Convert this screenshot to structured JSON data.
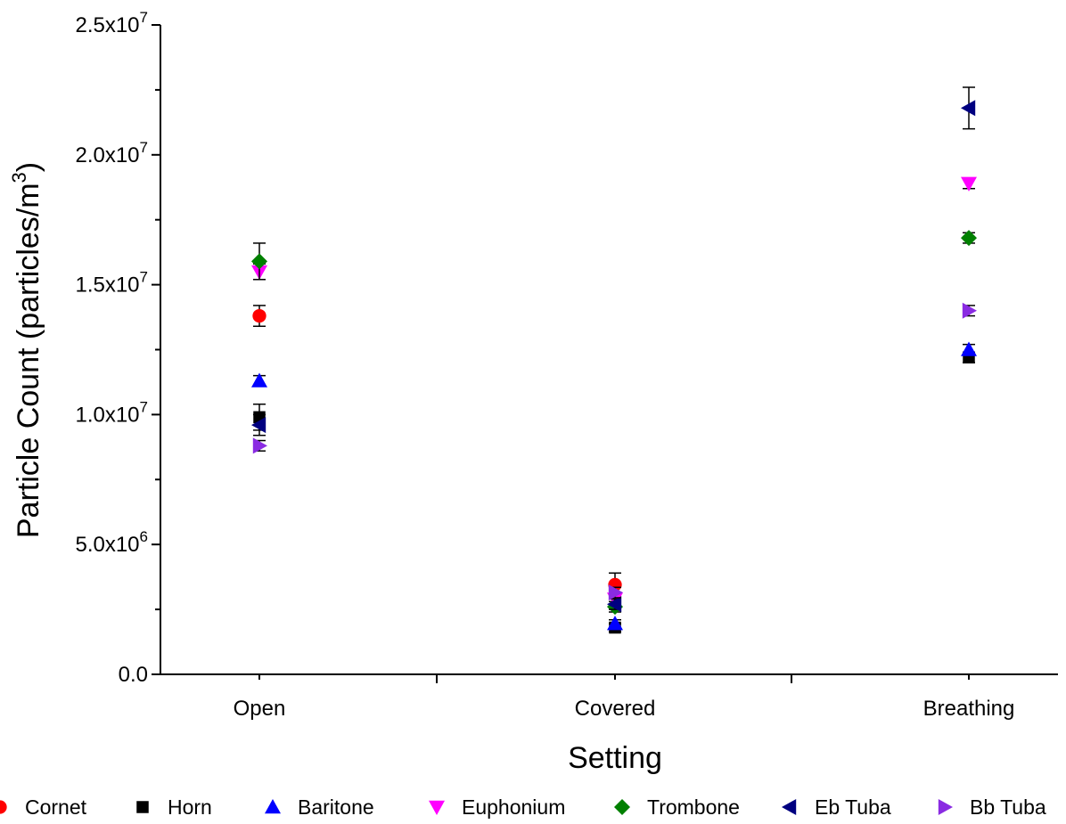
{
  "chart_data": {
    "type": "scatter",
    "title": "",
    "xlabel": "Setting",
    "ylabel": "Particle Count (particles/m³)",
    "ylabel_base": "Particle Count (particles/m",
    "ylabel_sup": "3",
    "ylabel_close": ")",
    "categories": [
      "Open",
      "Covered",
      "Breathing"
    ],
    "ylim": [
      0,
      25000000
    ],
    "y_ticks": [
      {
        "value": 0,
        "base": "0.0",
        "exp": ""
      },
      {
        "value": 5000000,
        "base": "5.0x10",
        "exp": "6"
      },
      {
        "value": 10000000,
        "base": "1.0x10",
        "exp": "7"
      },
      {
        "value": 15000000,
        "base": "1.5x10",
        "exp": "7"
      },
      {
        "value": 20000000,
        "base": "2.0x10",
        "exp": "7"
      },
      {
        "value": 25000000,
        "base": "2.5x10",
        "exp": "7"
      }
    ],
    "legend_position": "bottom",
    "grid": false,
    "series": [
      {
        "name": "Cornet",
        "marker": "circle",
        "color": "#ff0000",
        "values": [
          13800000,
          3450000,
          null
        ],
        "errors": [
          400000,
          450000,
          null
        ]
      },
      {
        "name": "Horn",
        "marker": "square",
        "color": "#000000",
        "values": [
          9900000,
          1800000,
          12200000
        ],
        "errors": [
          500000,
          150000,
          200000
        ]
      },
      {
        "name": "Baritone",
        "marker": "triangle-up",
        "color": "#0000ff",
        "values": [
          11300000,
          1950000,
          12500000
        ],
        "errors": [
          200000,
          150000,
          200000
        ]
      },
      {
        "name": "Euphonium",
        "marker": "triangle-down",
        "color": "#ff00ff",
        "values": [
          15500000,
          2900000,
          18900000
        ],
        "errors": [
          300000,
          200000,
          200000
        ]
      },
      {
        "name": "Trombone",
        "marker": "diamond",
        "color": "#008000",
        "values": [
          15900000,
          2600000,
          16800000
        ],
        "errors": [
          700000,
          200000,
          200000
        ]
      },
      {
        "name": "Eb Tuba",
        "marker": "triangle-left",
        "color": "#000080",
        "values": [
          9600000,
          2700000,
          21800000
        ],
        "errors": [
          400000,
          200000,
          800000
        ]
      },
      {
        "name": "Bb Tuba",
        "marker": "triangle-right",
        "color": "#8a2be2",
        "values": [
          8800000,
          3150000,
          14000000
        ],
        "errors": [
          200000,
          200000,
          200000
        ]
      }
    ]
  }
}
